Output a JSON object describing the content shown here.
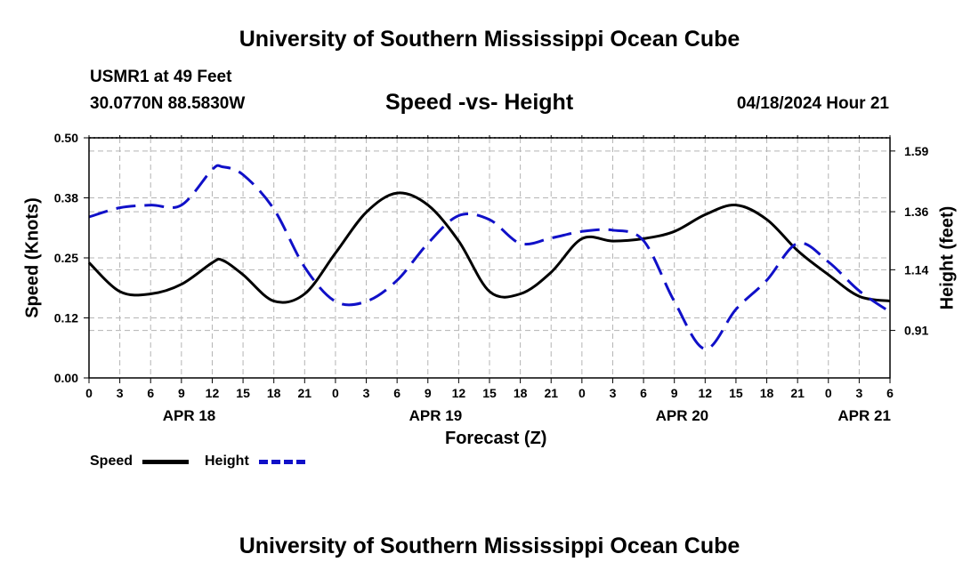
{
  "page_title": "University of Southern Mississippi Ocean Cube",
  "footer_title": "University of Southern Mississippi Ocean Cube",
  "station": {
    "name": "USMR1 at 49 Feet",
    "coords": "30.0770N  88.5830W"
  },
  "timestamp": "04/18/2024 Hour 21",
  "colors": {
    "speed": "#000000",
    "height": "#1010c8",
    "grid": "#b4b4b4"
  },
  "chart_data": {
    "type": "line",
    "title": "Speed -vs- Height",
    "xlabel": "Forecast (Z)",
    "ylabel_left": "Speed (Knots)",
    "ylabel_right": "Height (feet)",
    "x_range_hours": [
      0,
      78
    ],
    "y_left_range": [
      0.0,
      0.5
    ],
    "y_right_range": [
      0.73,
      1.64
    ],
    "y_left_ticks": [
      "0.00",
      "0.12",
      "0.25",
      "0.38",
      "0.50"
    ],
    "y_left_tick_values": [
      0.0,
      0.125,
      0.25,
      0.375,
      0.5
    ],
    "y_right_ticks": [
      "0.91",
      "1.14",
      "1.36",
      "1.59"
    ],
    "y_right_tick_values": [
      0.91,
      1.14,
      1.36,
      1.59
    ],
    "x_tick_labels": [
      "0",
      "3",
      "6",
      "9",
      "12",
      "15",
      "18",
      "21",
      "0",
      "3",
      "6",
      "9",
      "12",
      "15",
      "18",
      "21",
      "0",
      "3",
      "6",
      "9",
      "12",
      "15",
      "18",
      "21",
      "0",
      "3",
      "6"
    ],
    "date_labels": [
      {
        "label": "APR 18",
        "hour": 9.75
      },
      {
        "label": "APR 19",
        "hour": 33.75
      },
      {
        "label": "APR 20",
        "hour": 57.75
      },
      {
        "label": "APR 21",
        "hour": 75.5
      }
    ],
    "legend": [
      "Speed",
      "Height"
    ],
    "series": [
      {
        "name": "Speed",
        "axis": "left",
        "style": "solid",
        "x": [
          0,
          3,
          6,
          9,
          12,
          13,
          15,
          18,
          21,
          24,
          27,
          30,
          33,
          36,
          39,
          42,
          45,
          48,
          51,
          54,
          57,
          60,
          63,
          66,
          69,
          72,
          75,
          78
        ],
        "y": [
          0.24,
          0.18,
          0.175,
          0.195,
          0.24,
          0.245,
          0.215,
          0.16,
          0.175,
          0.26,
          0.345,
          0.385,
          0.36,
          0.285,
          0.18,
          0.175,
          0.22,
          0.29,
          0.285,
          0.29,
          0.305,
          0.34,
          0.36,
          0.33,
          0.265,
          0.215,
          0.17,
          0.16
        ]
      },
      {
        "name": "Height",
        "axis": "right",
        "style": "dashed",
        "x": [
          0,
          3,
          6,
          9,
          12,
          13,
          15,
          18,
          21,
          24,
          27,
          30,
          33,
          36,
          39,
          42,
          45,
          48,
          51,
          54,
          57,
          60,
          63,
          66,
          69,
          72,
          75,
          78
        ],
        "y": [
          1.34,
          1.375,
          1.385,
          1.385,
          1.52,
          1.53,
          1.5,
          1.37,
          1.15,
          1.02,
          1.02,
          1.1,
          1.24,
          1.345,
          1.33,
          1.24,
          1.26,
          1.285,
          1.29,
          1.25,
          1.02,
          0.84,
          0.99,
          1.1,
          1.24,
          1.17,
          1.06,
          0.98
        ]
      }
    ]
  }
}
